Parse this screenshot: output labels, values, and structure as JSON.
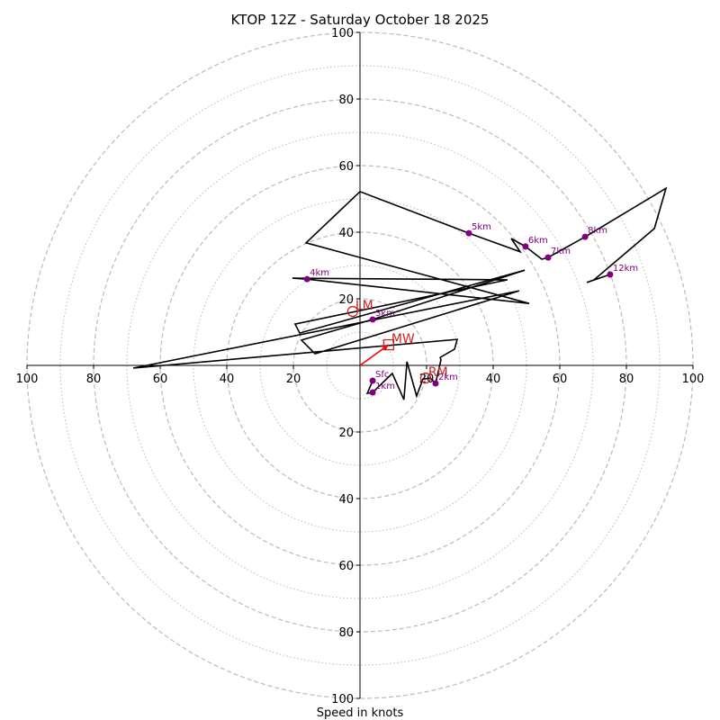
{
  "chart_data": {
    "type": "line",
    "subtype": "hodograph",
    "title": "KTOP 12Z - Saturday October 18 2025",
    "xlabel": "Speed in knots",
    "ylabel": "",
    "xlim": [
      -100,
      100
    ],
    "ylim": [
      -100,
      100
    ],
    "rings_dashed": [
      20,
      40,
      60,
      80,
      100
    ],
    "rings_dotted": [
      10,
      30,
      50,
      70,
      90
    ],
    "x_ticks": [
      100,
      80,
      60,
      40,
      20,
      20,
      40,
      60,
      80,
      100
    ],
    "x_tick_values": [
      -100,
      -80,
      -60,
      -40,
      -20,
      20,
      40,
      60,
      80,
      100
    ],
    "y_ticks": [
      100,
      80,
      60,
      40,
      20,
      20,
      40,
      60,
      80,
      100
    ],
    "y_tick_values": [
      100,
      80,
      60,
      40,
      20,
      -20,
      -40,
      -60,
      -80,
      -100
    ],
    "trace": {
      "name": "wind profile",
      "color": "#000000",
      "u": [
        3.8,
        2.2,
        3.8,
        9.7,
        13.2,
        14.1,
        17.0,
        18.9,
        21.1,
        22.7,
        24.3,
        24.1,
        28.4,
        29.2,
        -68.1,
        47.8,
        -13.5,
        -17.6,
        3.8,
        49.5,
        -18.1,
        -19.5,
        44.3,
        -20.3,
        -15.9,
        50.8,
        -16.2,
        0.0,
        32.7,
        48.1,
        45.4,
        49.7,
        54.6,
        56.5,
        67.6,
        91.9,
        88.4,
        70.3,
        68.1,
        75.1
      ],
      "v": [
        -4.6,
        -8.4,
        -8.1,
        -2.4,
        -10.3,
        1.1,
        -9.2,
        -4.1,
        -3.8,
        -5.4,
        1.6,
        2.4,
        4.9,
        7.8,
        -0.8,
        22.4,
        3.5,
        7.6,
        13.8,
        28.6,
        9.7,
        12.4,
        25.7,
        26.2,
        25.9,
        18.6,
        36.8,
        52.2,
        39.7,
        34.1,
        38.1,
        35.7,
        31.9,
        32.4,
        38.6,
        53.2,
        41.1,
        25.7,
        24.9,
        27.3
      ]
    },
    "height_markers": [
      {
        "label": "Sfc",
        "u": 3.8,
        "v": -4.6
      },
      {
        "label": "1km",
        "u": 3.8,
        "v": -8.1
      },
      {
        "label": "2km",
        "u": 22.7,
        "v": -5.4
      },
      {
        "label": "3km",
        "u": 3.8,
        "v": 13.8
      },
      {
        "label": "4km",
        "u": -15.9,
        "v": 25.9
      },
      {
        "label": "5km",
        "u": 32.7,
        "v": 39.7
      },
      {
        "label": "6km",
        "u": 49.7,
        "v": 35.7
      },
      {
        "label": "7km",
        "u": 56.5,
        "v": 32.4
      },
      {
        "label": "8km",
        "u": 67.6,
        "v": 38.6
      },
      {
        "label": "12km",
        "u": 75.1,
        "v": 27.3
      }
    ],
    "storm_motion": [
      {
        "label": "LM",
        "marker": "circle",
        "u": -2.2,
        "v": 16.2
      },
      {
        "label": "MW",
        "marker": "square",
        "u": 8.6,
        "v": 6.2
      },
      {
        "label": "RM",
        "marker": "circle",
        "u": 19.7,
        "v": -3.8
      }
    ],
    "mean_wind_vector": {
      "u": 8.6,
      "v": 6.2,
      "color": "#ff0000"
    },
    "colors": {
      "trace": "#000000",
      "height_marker": "#800080",
      "storm_motion": "#cc2222",
      "ring": "#bbbbbb",
      "axis": "#000000"
    },
    "grid": true,
    "legend": "none"
  }
}
